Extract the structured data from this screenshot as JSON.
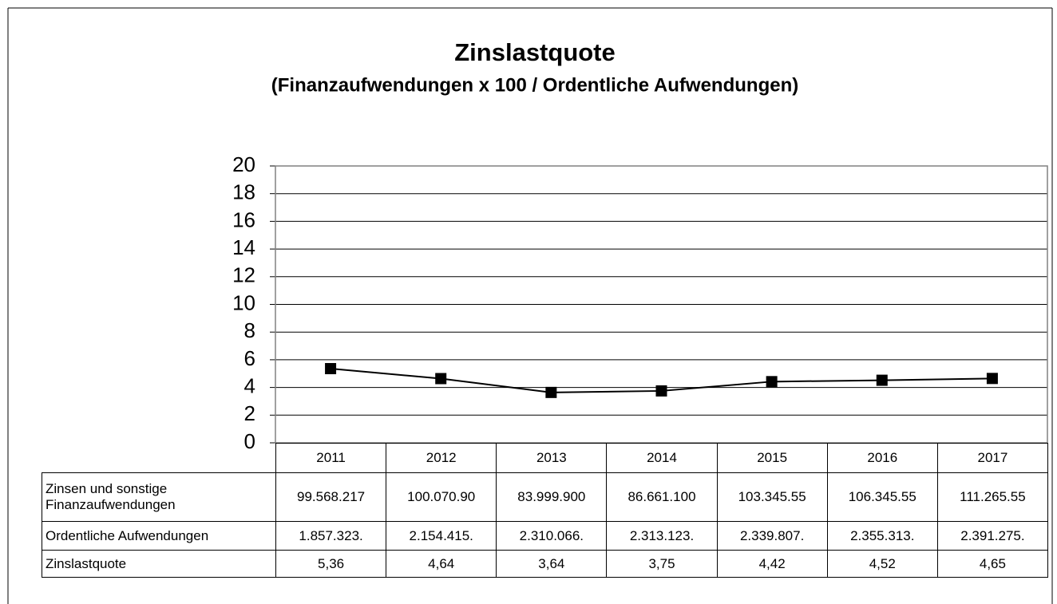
{
  "chart_data": {
    "type": "line",
    "title": "Zinslastquote",
    "subtitle": "(Finanzaufwendungen x 100 / Ordentliche Aufwendungen)",
    "categories": [
      "2011",
      "2012",
      "2013",
      "2014",
      "2015",
      "2016",
      "2017"
    ],
    "series": [
      {
        "name": "Zinslastquote",
        "color": "#000000",
        "values": [
          5.36,
          4.64,
          3.64,
          3.75,
          4.42,
          4.52,
          4.65
        ],
        "value_labels": [
          "5,36",
          "4,64",
          "3,64",
          "3,75",
          "4,42",
          "4,52",
          "4,65"
        ]
      }
    ],
    "ylim": [
      0,
      20
    ],
    "yticks": [
      0,
      2,
      4,
      6,
      8,
      10,
      12,
      14,
      16,
      18,
      20
    ],
    "grid": true,
    "data_table": {
      "rows": [
        {
          "label": "Zinsen und sonstige Finanzaufwendungen",
          "cells": [
            "99.568.217",
            "100.070.90",
            "83.999.900",
            "86.661.100",
            "103.345.55",
            "106.345.55",
            "111.265.55"
          ]
        },
        {
          "label": "Ordentliche Aufwendungen",
          "cells": [
            "1.857.323.",
            "2.154.415.",
            "2.310.066.",
            "2.313.123.",
            "2.339.807.",
            "2.355.313.",
            "2.391.275."
          ]
        }
      ]
    }
  }
}
